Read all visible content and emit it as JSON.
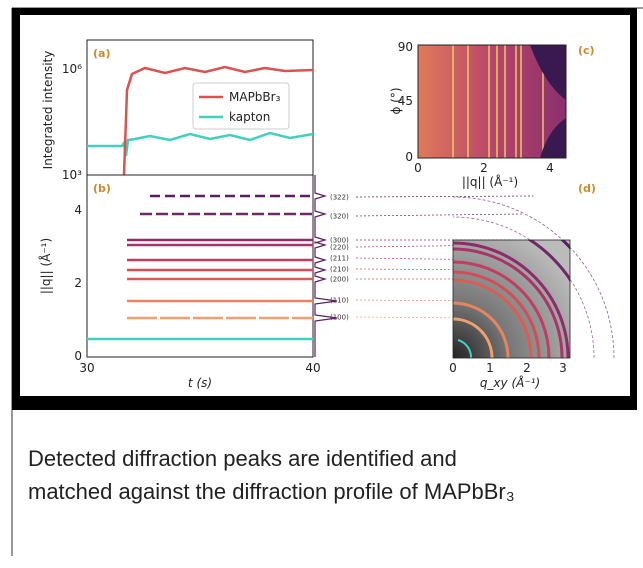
{
  "figure": {
    "panel_a": {
      "tag": "(a)",
      "ylabel": "Integrated intensity",
      "yticks": [
        "10⁶",
        "10³"
      ],
      "legend": [
        "MAPbBr₃",
        "kapton"
      ]
    },
    "panel_b": {
      "tag": "(b)",
      "ylabel": "||q|| (Å⁻¹)",
      "yticks": [
        "4",
        "2",
        "0"
      ],
      "xticks": [
        "30",
        "40"
      ],
      "xlabel": "t (s)",
      "peaks": [
        "(322)",
        "(320)",
        "(300)",
        "(220)",
        "(211)",
        "(210)",
        "(200)",
        "(110)",
        "(100)"
      ]
    },
    "panel_c": {
      "tag": "(c)",
      "ylabel": "ϕ (°)",
      "yticks": [
        "90",
        "45",
        "0"
      ],
      "xticks": [
        "0",
        "2",
        "4"
      ],
      "xlabel": "||q|| (Å⁻¹)"
    },
    "panel_d": {
      "tag": "(d)",
      "xticks": [
        "0",
        "1",
        "2",
        "3"
      ],
      "xlabel": "q_xy (Å⁻¹)"
    }
  },
  "caption": [
    "Detected diffraction peaks are identified and",
    "matched against the diffraction profile of MAPbBr₃"
  ]
}
